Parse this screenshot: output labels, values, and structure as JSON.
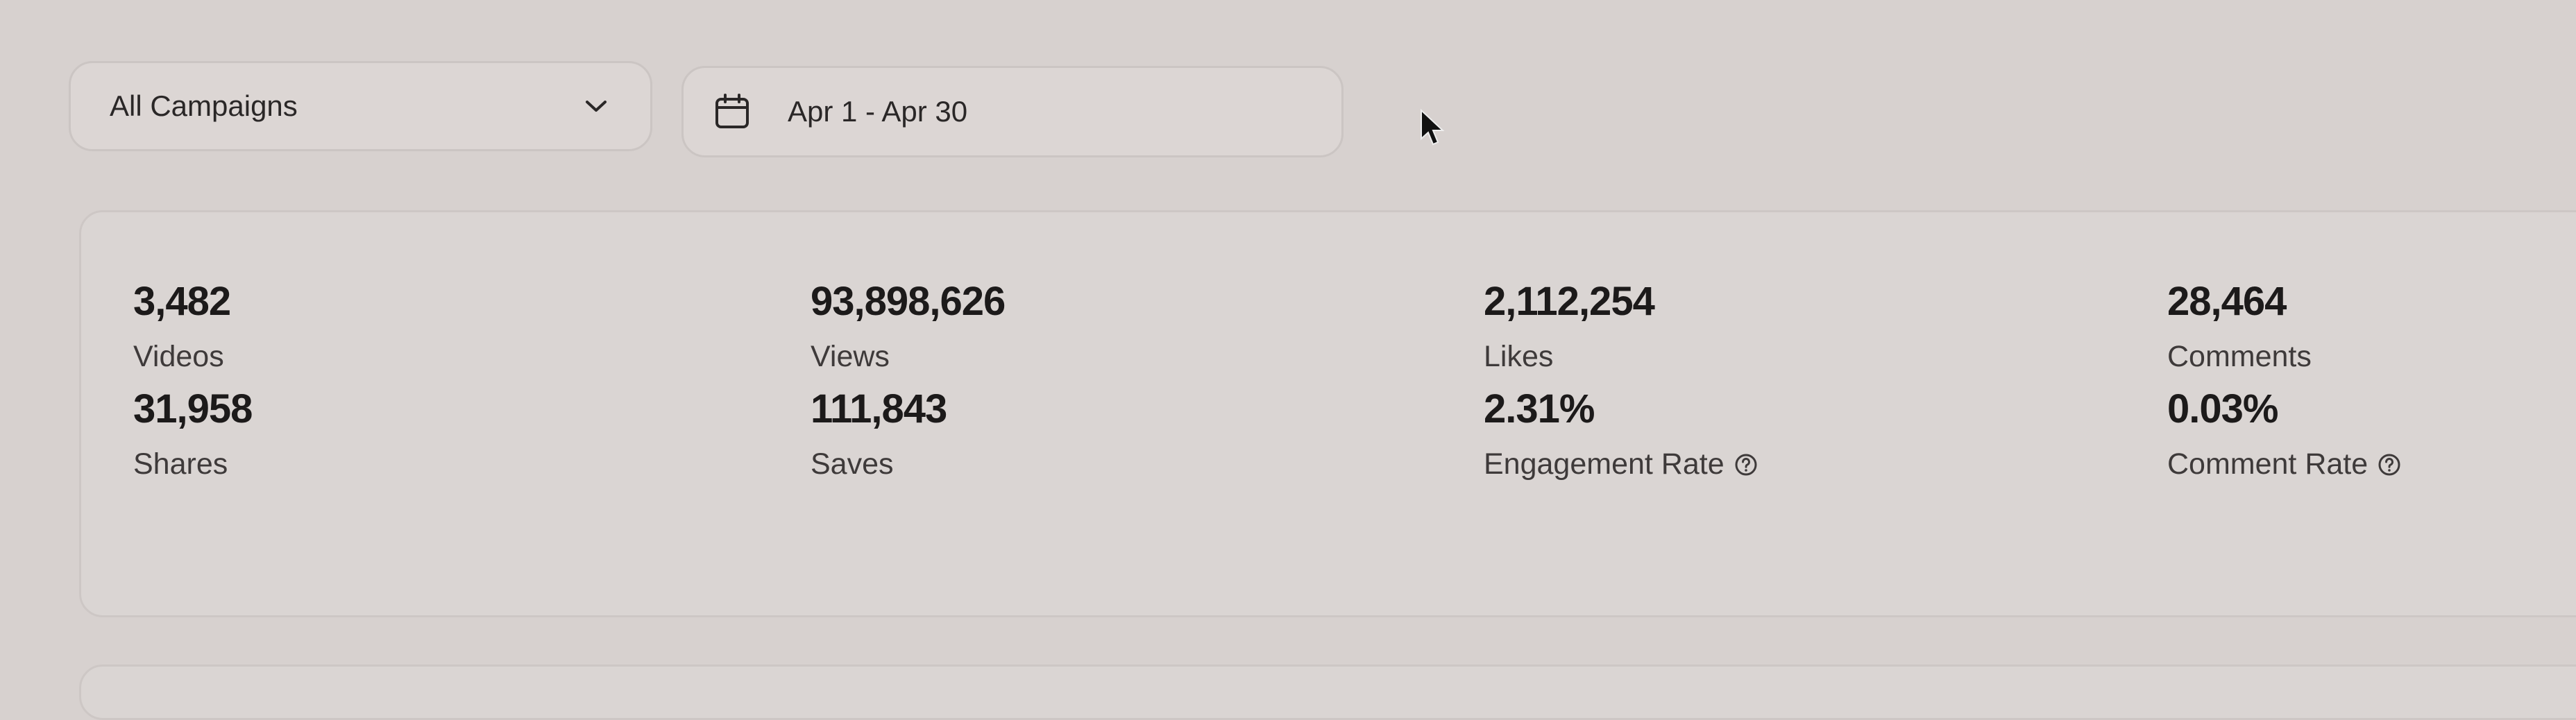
{
  "filters": {
    "campaign": "All Campaigns",
    "date_range": "Apr 1 - Apr 30"
  },
  "metrics": [
    {
      "value": "3,482",
      "label": "Videos"
    },
    {
      "value": "93,898,626",
      "label": "Views"
    },
    {
      "value": "2,112,254",
      "label": "Likes"
    },
    {
      "value": "28,464",
      "label": "Comments"
    },
    {
      "value": "31,958",
      "label": "Shares"
    },
    {
      "value": "111,843",
      "label": "Saves"
    },
    {
      "value": "2.31%",
      "label": "Engagement Rate"
    },
    {
      "value": "0.03%",
      "label": "Comment Rate"
    }
  ]
}
